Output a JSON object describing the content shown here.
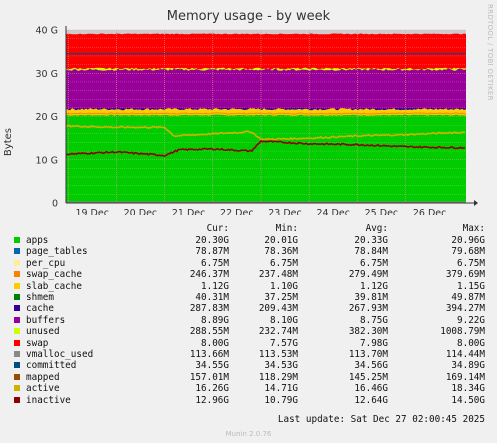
{
  "header": {
    "title": "Memory usage - by week",
    "side_label": "RRDTOOL / TOBI OETIKER",
    "y_axis_label": "Bytes"
  },
  "chart_data": {
    "type": "area",
    "title": "Memory usage - by week",
    "ylabel": "Bytes",
    "ylim": [
      0,
      40
    ],
    "y_unit": "G",
    "y_ticks": [
      0,
      10,
      20,
      30,
      40
    ],
    "y_tick_labels": [
      "0",
      "10 G",
      "20 G",
      "30 G",
      "40 G"
    ],
    "x_range": [
      "Dec 18 (partial)",
      "Dec 27 02:00"
    ],
    "x_tick_labels": [
      "19 Dec",
      "20 Dec",
      "21 Dec",
      "22 Dec",
      "23 Dec",
      "24 Dec",
      "25 Dec",
      "26 Dec"
    ],
    "grid": true,
    "stacked": true,
    "stack_order": [
      "apps",
      "page_tables",
      "per_cpu",
      "swap_cache",
      "slab_cache",
      "cache",
      "buffers",
      "unused",
      "swap"
    ],
    "stack_approx_totals_G": {
      "apps": 20.3,
      "through_slab_cache": 21.7,
      "through_cache": 21.9,
      "through_buffers": 30.8,
      "through_unused": 31.1,
      "through_swap": 39.1
    },
    "lines": [
      {
        "name": "committed",
        "approx_value_G": 34.5
      },
      {
        "name": "active",
        "points_G": [
          {
            "x": "Dec 18",
            "y": 16.8
          },
          {
            "x": "Dec 19",
            "y": 17.8
          },
          {
            "x": "Dec 20",
            "y": 17.5
          },
          {
            "x": "Dec 21",
            "y": 17.5
          },
          {
            "x": "Dec 21.2",
            "y": 15.5
          },
          {
            "x": "Dec 22",
            "y": 16.0
          },
          {
            "x": "Dec 22.8",
            "y": 16.5
          },
          {
            "x": "Dec 23",
            "y": 14.7
          },
          {
            "x": "Dec 24",
            "y": 15.0
          },
          {
            "x": "Dec 25",
            "y": 15.5
          },
          {
            "x": "Dec 26",
            "y": 15.8
          },
          {
            "x": "Dec 27",
            "y": 16.3
          }
        ]
      },
      {
        "name": "inactive",
        "points_G": [
          {
            "x": "Dec 18",
            "y": 12.3
          },
          {
            "x": "Dec 19",
            "y": 11.3
          },
          {
            "x": "Dec 20",
            "y": 11.8
          },
          {
            "x": "Dec 21",
            "y": 11.0
          },
          {
            "x": "Dec 21.3",
            "y": 12.3
          },
          {
            "x": "Dec 22",
            "y": 12.5
          },
          {
            "x": "Dec 22.8",
            "y": 12.0
          },
          {
            "x": "Dec 23",
            "y": 14.3
          },
          {
            "x": "Dec 24",
            "y": 13.7
          },
          {
            "x": "Dec 25",
            "y": 13.5
          },
          {
            "x": "Dec 26",
            "y": 13.0
          },
          {
            "x": "Dec 27",
            "y": 12.8
          }
        ]
      }
    ],
    "colors": {
      "apps": "#00cc00",
      "page_tables": "#0066b3",
      "per_cpu": "#ffee99",
      "swap_cache": "#ff8000",
      "slab_cache": "#ffcc00",
      "shmem": "#008000",
      "cache": "#330099",
      "buffers": "#990099",
      "unused": "#ccff00",
      "swap": "#ff0000",
      "vmalloc_used": "#888888",
      "committed": "#004d80",
      "mapped": "#994d00",
      "active": "#ccb300",
      "inactive": "#8f0000"
    },
    "chart_bg": "#cccccc"
  },
  "legend": {
    "headers": {
      "cur": "Cur:",
      "min": "Min:",
      "avg": "Avg:",
      "max": "Max:"
    },
    "rows": [
      {
        "name": "apps",
        "cur": "20.30G",
        "min": "20.01G",
        "avg": "20.33G",
        "max": "20.96G",
        "color": "#00cc00"
      },
      {
        "name": "page_tables",
        "cur": "78.87M",
        "min": "78.36M",
        "avg": "78.84M",
        "max": "79.68M",
        "color": "#0066b3"
      },
      {
        "name": "per_cpu",
        "cur": "6.75M",
        "min": "6.75M",
        "avg": "6.75M",
        "max": "6.75M",
        "color": "#ffee99"
      },
      {
        "name": "swap_cache",
        "cur": "246.37M",
        "min": "237.48M",
        "avg": "279.49M",
        "max": "379.69M",
        "color": "#ff8000"
      },
      {
        "name": "slab_cache",
        "cur": "1.12G",
        "min": "1.10G",
        "avg": "1.12G",
        "max": "1.15G",
        "color": "#ffcc00"
      },
      {
        "name": "shmem",
        "cur": "40.31M",
        "min": "37.25M",
        "avg": "39.81M",
        "max": "49.87M",
        "color": "#008000"
      },
      {
        "name": "cache",
        "cur": "287.83M",
        "min": "209.43M",
        "avg": "267.93M",
        "max": "394.27M",
        "color": "#330099"
      },
      {
        "name": "buffers",
        "cur": "8.89G",
        "min": "8.10G",
        "avg": "8.75G",
        "max": "9.22G",
        "color": "#990099"
      },
      {
        "name": "unused",
        "cur": "288.55M",
        "min": "232.74M",
        "avg": "382.30M",
        "max": "1008.79M",
        "color": "#ccff00"
      },
      {
        "name": "swap",
        "cur": "8.00G",
        "min": "7.57G",
        "avg": "7.98G",
        "max": "8.00G",
        "color": "#ff0000"
      },
      {
        "name": "vmalloc_used",
        "cur": "113.66M",
        "min": "113.53M",
        "avg": "113.70M",
        "max": "114.44M",
        "color": "#888888"
      },
      {
        "name": "committed",
        "cur": "34.55G",
        "min": "34.53G",
        "avg": "34.56G",
        "max": "34.89G",
        "color": "#004d80"
      },
      {
        "name": "mapped",
        "cur": "157.01M",
        "min": "118.29M",
        "avg": "145.25M",
        "max": "169.14M",
        "color": "#994d00"
      },
      {
        "name": "active",
        "cur": "16.26G",
        "min": "14.71G",
        "avg": "16.46G",
        "max": "18.34G",
        "color": "#ccb300"
      },
      {
        "name": "inactive",
        "cur": "12.96G",
        "min": "10.79G",
        "avg": "12.64G",
        "max": "14.50G",
        "color": "#8f0000"
      }
    ]
  },
  "footer": {
    "last_update": "Last update: Sat Dec 27 02:00:45 2025",
    "version": "Munin 2.0.76"
  }
}
